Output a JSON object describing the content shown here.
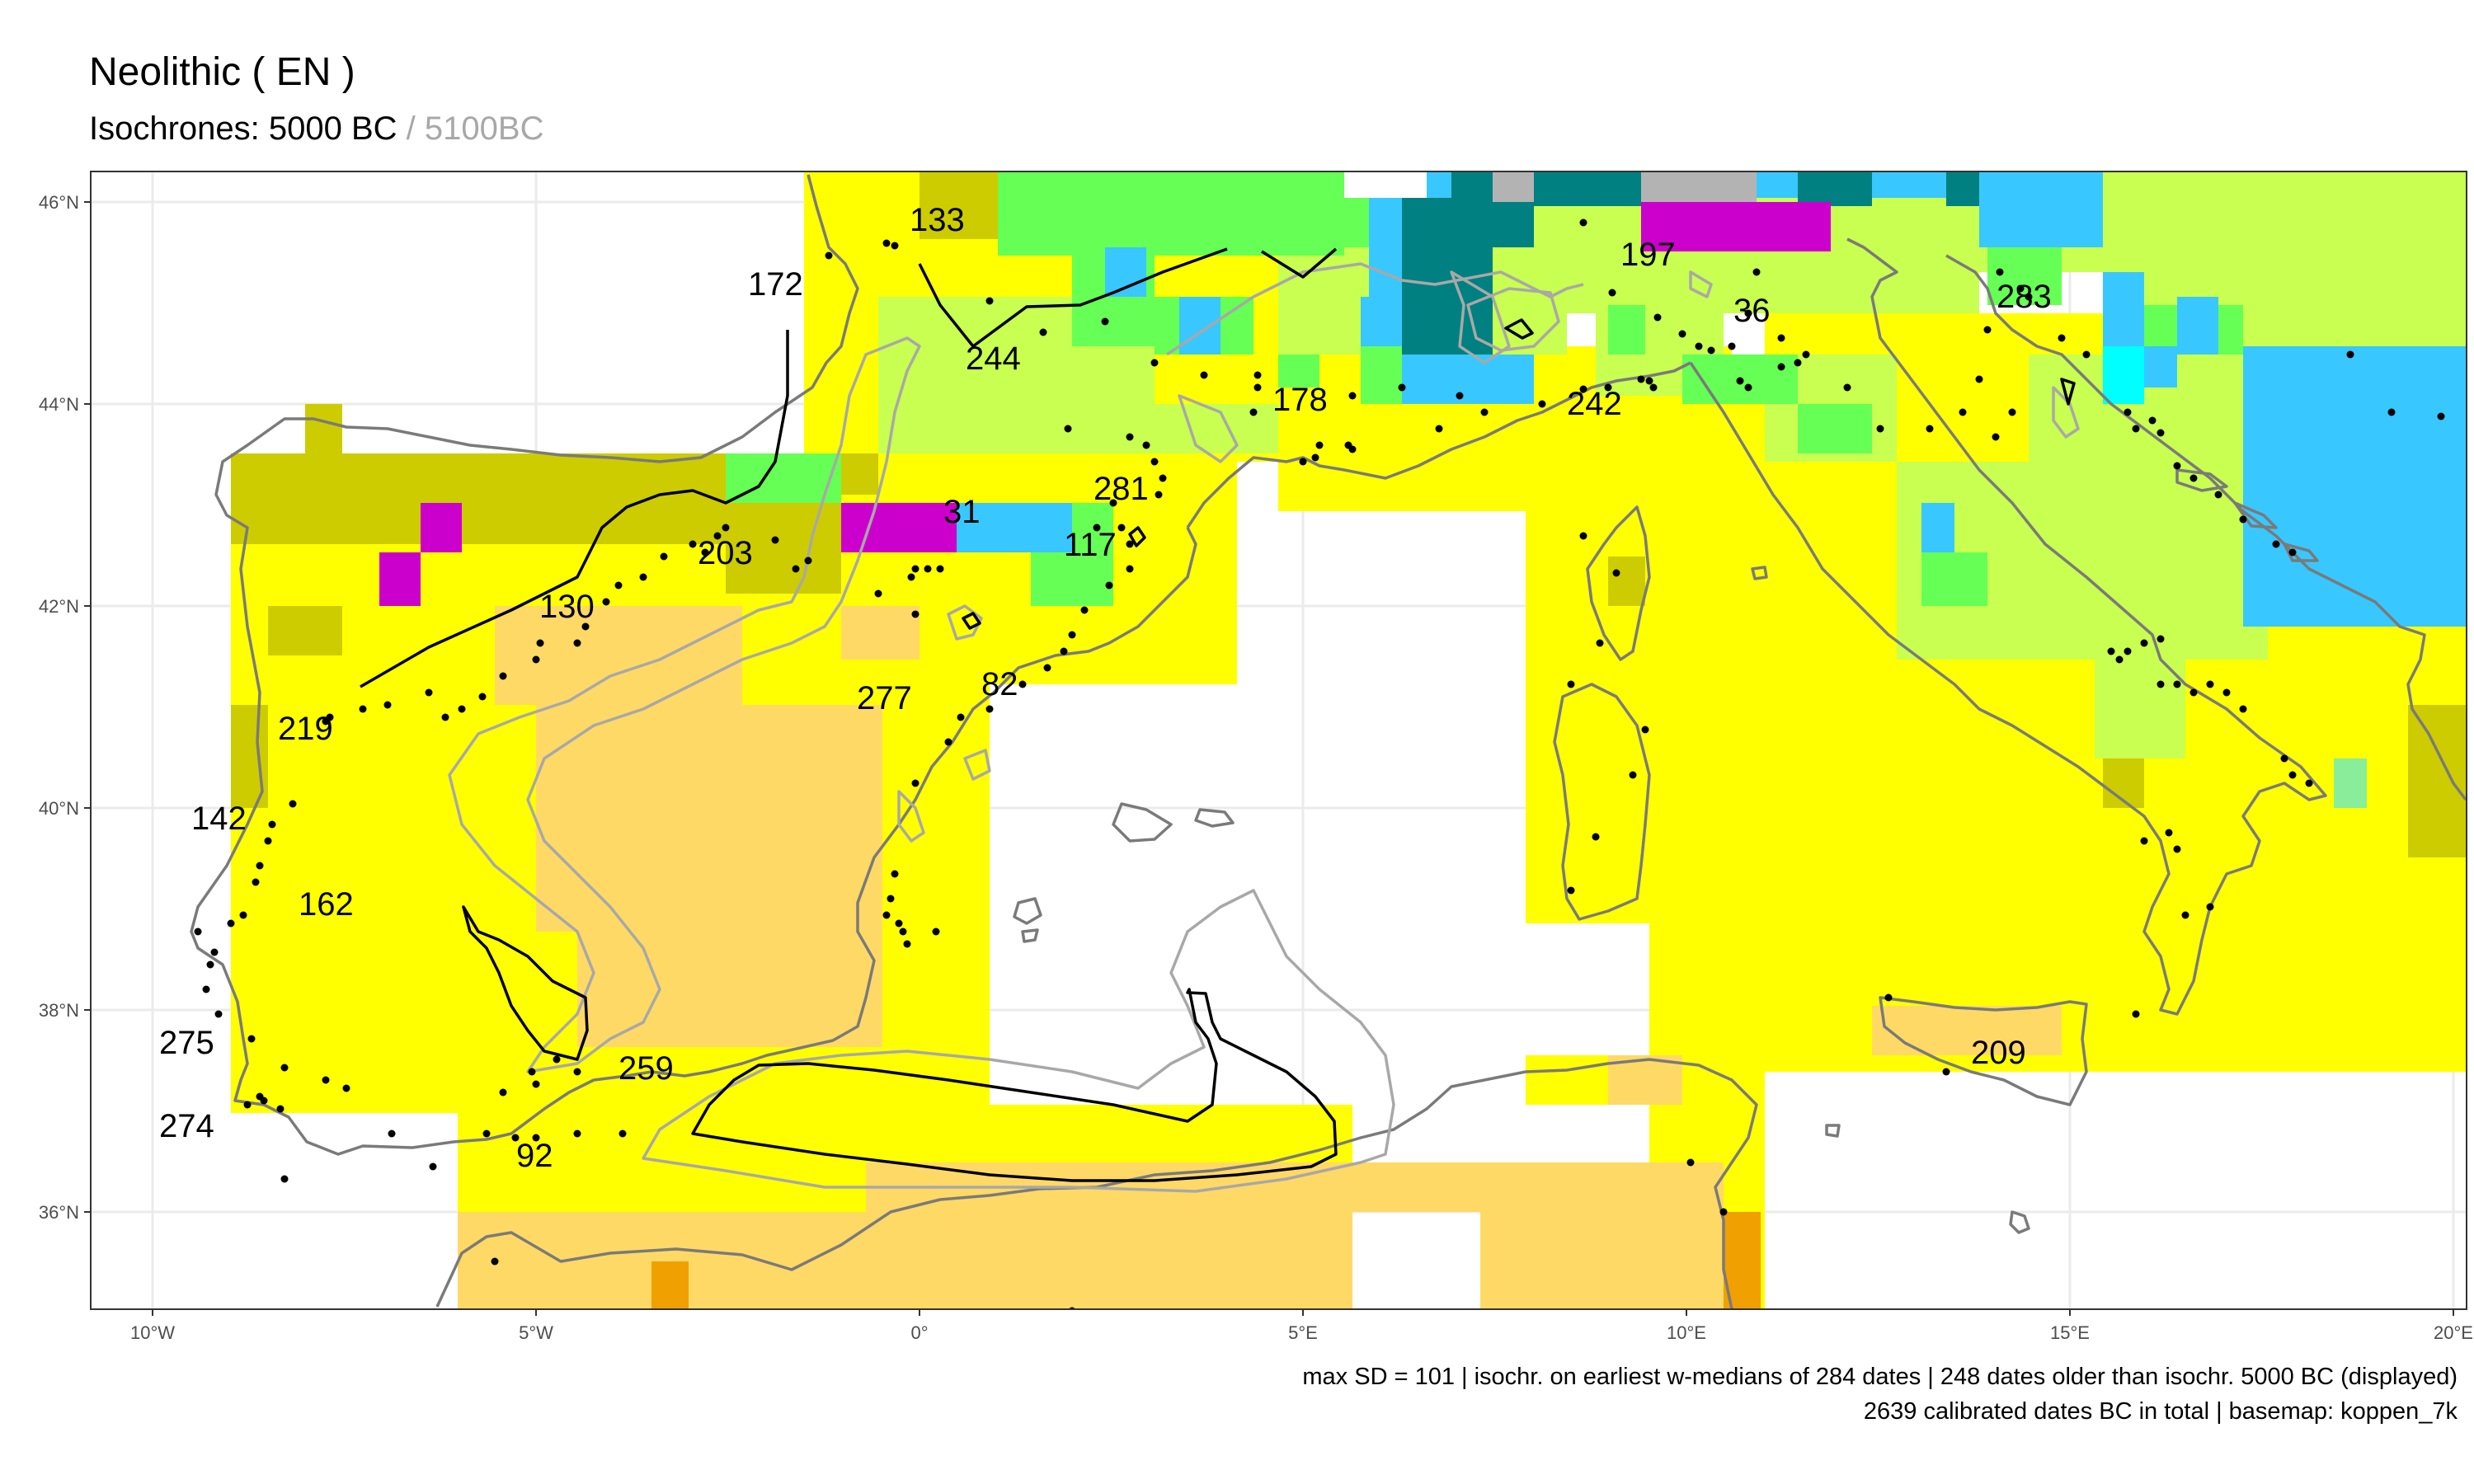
{
  "title": "Neolithic ( EN )",
  "subtitle": {
    "current": "Isochrones: 5000 BC",
    "separator": " / ",
    "previous": "5100BC"
  },
  "colors": {
    "current_isochrone": "#000000",
    "previous_isochrone": "#a8a8a8",
    "coastline": "#7a7a7a",
    "koppen": [
      "#ffff00",
      "#ffd966",
      "#cccc00",
      "#c8ff50",
      "#66ff55",
      "#38c8ff",
      "#008080",
      "#cc00cc",
      "#b3b3b3",
      "#f0a000",
      "#00ffff",
      "#88ee99"
    ]
  },
  "axes": {
    "x_ticks": [
      "10°W",
      "5°W",
      "0°",
      "5°E",
      "10°E",
      "15°E",
      "20°E"
    ],
    "y_ticks": [
      "46°N",
      "44°N",
      "42°N",
      "40°N",
      "38°N",
      "36°N"
    ],
    "grid": true
  },
  "isochrone_labels": [
    "133",
    "172",
    "244",
    "197",
    "36",
    "283",
    "178",
    "242",
    "281",
    "31",
    "117",
    "203",
    "130",
    "277",
    "82",
    "219",
    "142",
    "162",
    "275",
    "274",
    "259",
    "92",
    "209"
  ],
  "caption": {
    "line1": "max SD = 101 | isochr. on earliest w-medians of 284 dates |  248 dates older than isochr. 5000 BC (displayed)",
    "line2": "2639 calibrated dates BC in total | basemap: koppen_7k"
  }
}
